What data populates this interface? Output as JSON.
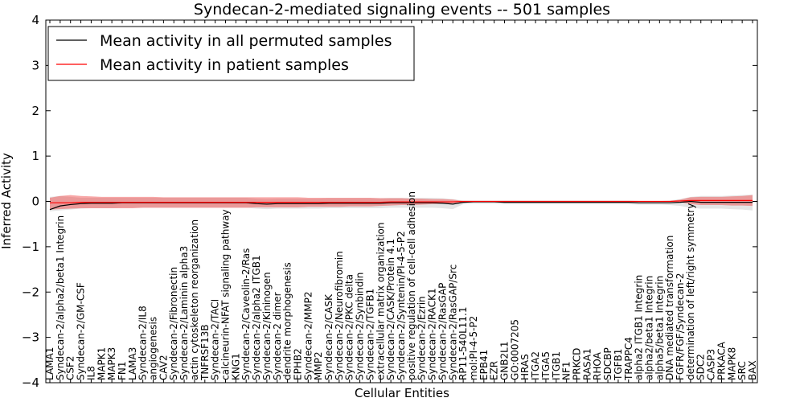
{
  "chart_data": {
    "type": "line",
    "title": "Syndecan-2-mediated signaling events -- 501 samples",
    "xlabel": "Cellular Entities",
    "ylabel": "Inferred Activity",
    "ylim": [
      -4,
      4
    ],
    "yticks": [
      "−4",
      "−3",
      "−2",
      "−1",
      "0",
      "1",
      "2",
      "3",
      "4"
    ],
    "grid": false,
    "legend_position": "top-left",
    "categories": [
      "LAMA1",
      "Syndecan-2/alpha2/beta1 Integrin",
      "CSF2",
      "Syndecan-2/GM-CSF",
      "IL8",
      "MAPK1",
      "MAPK3",
      "FN1",
      "LAMA3",
      "Syndecan-2/IL8",
      "angiogenesis",
      "CAV2",
      "Syndecan-2/Fibronectin",
      "Syndecan-2/Laminin alpha3",
      "actin cytoskeleton reorganization",
      "TNFRSF13B",
      "Syndecan-2/TACI",
      "calcineurin-NFAT signaling pathway",
      "KNG1",
      "Syndecan-2/Caveolin-2/Ras",
      "Syndecan-2/alpha2 ITGB1",
      "Syndecan-2/Kininogen",
      "Syndecan-2 dimer",
      "dendrite morphogenesis",
      "EPHB2",
      "Syndecan-2/MMP2",
      "MMP2",
      "Syndecan-2/CASK",
      "Syndecan-2/Neurofibromin",
      "Syndecan-2/PKC delta",
      "Syndecan-2/Synbindin",
      "Syndecan-2/TGFB1",
      "extracellular matrix organization",
      "Syndecan-2/CASK/Protein 4.1",
      "Syndecan-2/Syntenin/PI-4-5-P2",
      "positive regulation of cell-cell adhesion",
      "Syndecan-2/Ezrin",
      "Syndecan-2/RACK1",
      "Syndecan-2/RasGAP",
      "Syndecan-2/RasGAP/Src",
      "RP11-540L11.1",
      "mol:PI-4-5-P2",
      "EPB41",
      "EZR",
      "GNB2L1",
      "GO:0007205",
      "HRAS",
      "ITGA2",
      "ITGA5",
      "ITGB1",
      "NF1",
      "PRKCD",
      "RASA1",
      "RHOA",
      "SDCBP",
      "TGFB1",
      "TRAPPC4",
      "alpha2 ITGB1 Integrin",
      "alpha2/beta1 Integrin",
      "alpha5/beta1 Integrin",
      "DNA mediated transformation",
      "FGFR/FGF/Syndecan-2",
      "determination of left/right symmetry",
      "SDC2",
      "CASP3",
      "PRKACA",
      "MAPK8",
      "SRC",
      "BAX"
    ],
    "series": [
      {
        "name": "Mean activity in all permuted samples",
        "color": "#000000",
        "values": [
          -0.18,
          -0.1,
          -0.07,
          -0.05,
          -0.04,
          -0.04,
          -0.04,
          -0.03,
          -0.03,
          -0.03,
          -0.03,
          -0.03,
          -0.03,
          -0.03,
          -0.03,
          -0.03,
          -0.03,
          -0.03,
          -0.03,
          -0.03,
          -0.05,
          -0.06,
          -0.05,
          -0.05,
          -0.05,
          -0.05,
          -0.05,
          -0.04,
          -0.04,
          -0.04,
          -0.04,
          -0.04,
          -0.04,
          -0.03,
          -0.03,
          -0.03,
          -0.03,
          -0.03,
          -0.04,
          -0.06,
          -0.02,
          -0.01,
          -0.01,
          -0.01,
          -0.02,
          -0.02,
          -0.02,
          -0.02,
          -0.02,
          -0.02,
          -0.02,
          -0.02,
          -0.02,
          -0.02,
          -0.02,
          -0.02,
          -0.02,
          -0.03,
          -0.03,
          -0.03,
          -0.03,
          -0.02,
          0.0,
          -0.02,
          -0.02,
          -0.02,
          -0.02,
          -0.02,
          -0.02
        ],
        "band_low": [
          -0.22,
          -0.2,
          -0.18,
          -0.16,
          -0.15,
          -0.15,
          -0.15,
          -0.14,
          -0.14,
          -0.14,
          -0.14,
          -0.14,
          -0.14,
          -0.14,
          -0.14,
          -0.14,
          -0.14,
          -0.14,
          -0.14,
          -0.14,
          -0.16,
          -0.17,
          -0.16,
          -0.16,
          -0.16,
          -0.16,
          -0.16,
          -0.15,
          -0.15,
          -0.15,
          -0.15,
          -0.15,
          -0.15,
          -0.14,
          -0.14,
          -0.14,
          -0.14,
          -0.14,
          -0.15,
          -0.17,
          -0.06,
          -0.05,
          -0.05,
          -0.05,
          -0.06,
          -0.06,
          -0.06,
          -0.06,
          -0.06,
          -0.06,
          -0.06,
          -0.06,
          -0.06,
          -0.06,
          -0.06,
          -0.06,
          -0.06,
          -0.07,
          -0.07,
          -0.07,
          -0.08,
          -0.1,
          -0.14,
          -0.16,
          -0.16,
          -0.16,
          -0.17,
          -0.18,
          -0.2
        ],
        "band_high": [
          0.1,
          0.12,
          0.1,
          0.08,
          0.08,
          0.08,
          0.08,
          0.08,
          0.08,
          0.08,
          0.08,
          0.08,
          0.08,
          0.08,
          0.08,
          0.08,
          0.08,
          0.08,
          0.08,
          0.08,
          0.06,
          0.05,
          0.06,
          0.06,
          0.06,
          0.06,
          0.06,
          0.07,
          0.07,
          0.07,
          0.07,
          0.07,
          0.07,
          0.08,
          0.08,
          0.08,
          0.08,
          0.08,
          0.07,
          0.05,
          0.02,
          0.02,
          0.02,
          0.02,
          0.02,
          0.02,
          0.02,
          0.02,
          0.02,
          0.02,
          0.02,
          0.02,
          0.02,
          0.02,
          0.02,
          0.02,
          0.02,
          0.01,
          0.01,
          0.01,
          0.02,
          0.05,
          0.1,
          0.12,
          0.12,
          0.12,
          0.13,
          0.14,
          0.15
        ]
      },
      {
        "name": "Mean activity in patient samples",
        "color": "#ff0000",
        "values": [
          -0.03,
          -0.03,
          -0.03,
          -0.02,
          -0.02,
          -0.02,
          -0.02,
          -0.02,
          -0.02,
          -0.02,
          -0.02,
          -0.02,
          -0.02,
          -0.02,
          -0.02,
          -0.02,
          -0.02,
          -0.02,
          -0.02,
          -0.02,
          -0.02,
          -0.02,
          -0.02,
          -0.02,
          -0.02,
          -0.02,
          -0.02,
          -0.02,
          -0.02,
          -0.02,
          -0.02,
          -0.02,
          -0.02,
          -0.01,
          -0.01,
          -0.01,
          -0.01,
          -0.01,
          -0.01,
          -0.01,
          0.0,
          0.0,
          0.0,
          0.0,
          0.0,
          0.0,
          0.0,
          0.0,
          0.0,
          0.0,
          0.0,
          0.0,
          0.0,
          0.0,
          0.0,
          0.0,
          0.0,
          0.0,
          0.0,
          0.0,
          0.0,
          0.01,
          0.02,
          0.02,
          0.02,
          0.02,
          0.02,
          0.02,
          0.02
        ],
        "band_low": [
          -0.18,
          -0.17,
          -0.16,
          -0.15,
          -0.15,
          -0.15,
          -0.15,
          -0.15,
          -0.15,
          -0.14,
          -0.14,
          -0.14,
          -0.14,
          -0.14,
          -0.14,
          -0.14,
          -0.14,
          -0.14,
          -0.14,
          -0.14,
          -0.13,
          -0.13,
          -0.13,
          -0.13,
          -0.13,
          -0.12,
          -0.12,
          -0.12,
          -0.12,
          -0.11,
          -0.11,
          -0.11,
          -0.1,
          -0.09,
          -0.08,
          -0.08,
          -0.07,
          -0.06,
          -0.05,
          -0.04,
          -0.01,
          -0.01,
          -0.01,
          -0.01,
          -0.01,
          -0.01,
          -0.01,
          -0.01,
          -0.01,
          -0.01,
          -0.01,
          -0.01,
          -0.01,
          -0.01,
          -0.01,
          -0.01,
          -0.01,
          -0.01,
          -0.01,
          -0.01,
          -0.01,
          -0.02,
          -0.06,
          -0.08,
          -0.08,
          -0.08,
          -0.09,
          -0.09,
          -0.1
        ],
        "band_high": [
          0.08,
          0.12,
          0.14,
          0.12,
          0.11,
          0.1,
          0.1,
          0.1,
          0.1,
          0.1,
          0.1,
          0.09,
          0.09,
          0.09,
          0.09,
          0.09,
          0.09,
          0.09,
          0.09,
          0.09,
          0.09,
          0.09,
          0.09,
          0.09,
          0.09,
          0.08,
          0.08,
          0.08,
          0.08,
          0.08,
          0.08,
          0.08,
          0.07,
          0.07,
          0.07,
          0.06,
          0.06,
          0.05,
          0.05,
          0.04,
          0.01,
          0.01,
          0.01,
          0.01,
          0.01,
          0.01,
          0.01,
          0.01,
          0.01,
          0.01,
          0.01,
          0.01,
          0.01,
          0.01,
          0.01,
          0.01,
          0.01,
          0.01,
          0.01,
          0.01,
          0.01,
          0.04,
          0.09,
          0.1,
          0.1,
          0.1,
          0.11,
          0.12,
          0.14
        ]
      }
    ]
  }
}
